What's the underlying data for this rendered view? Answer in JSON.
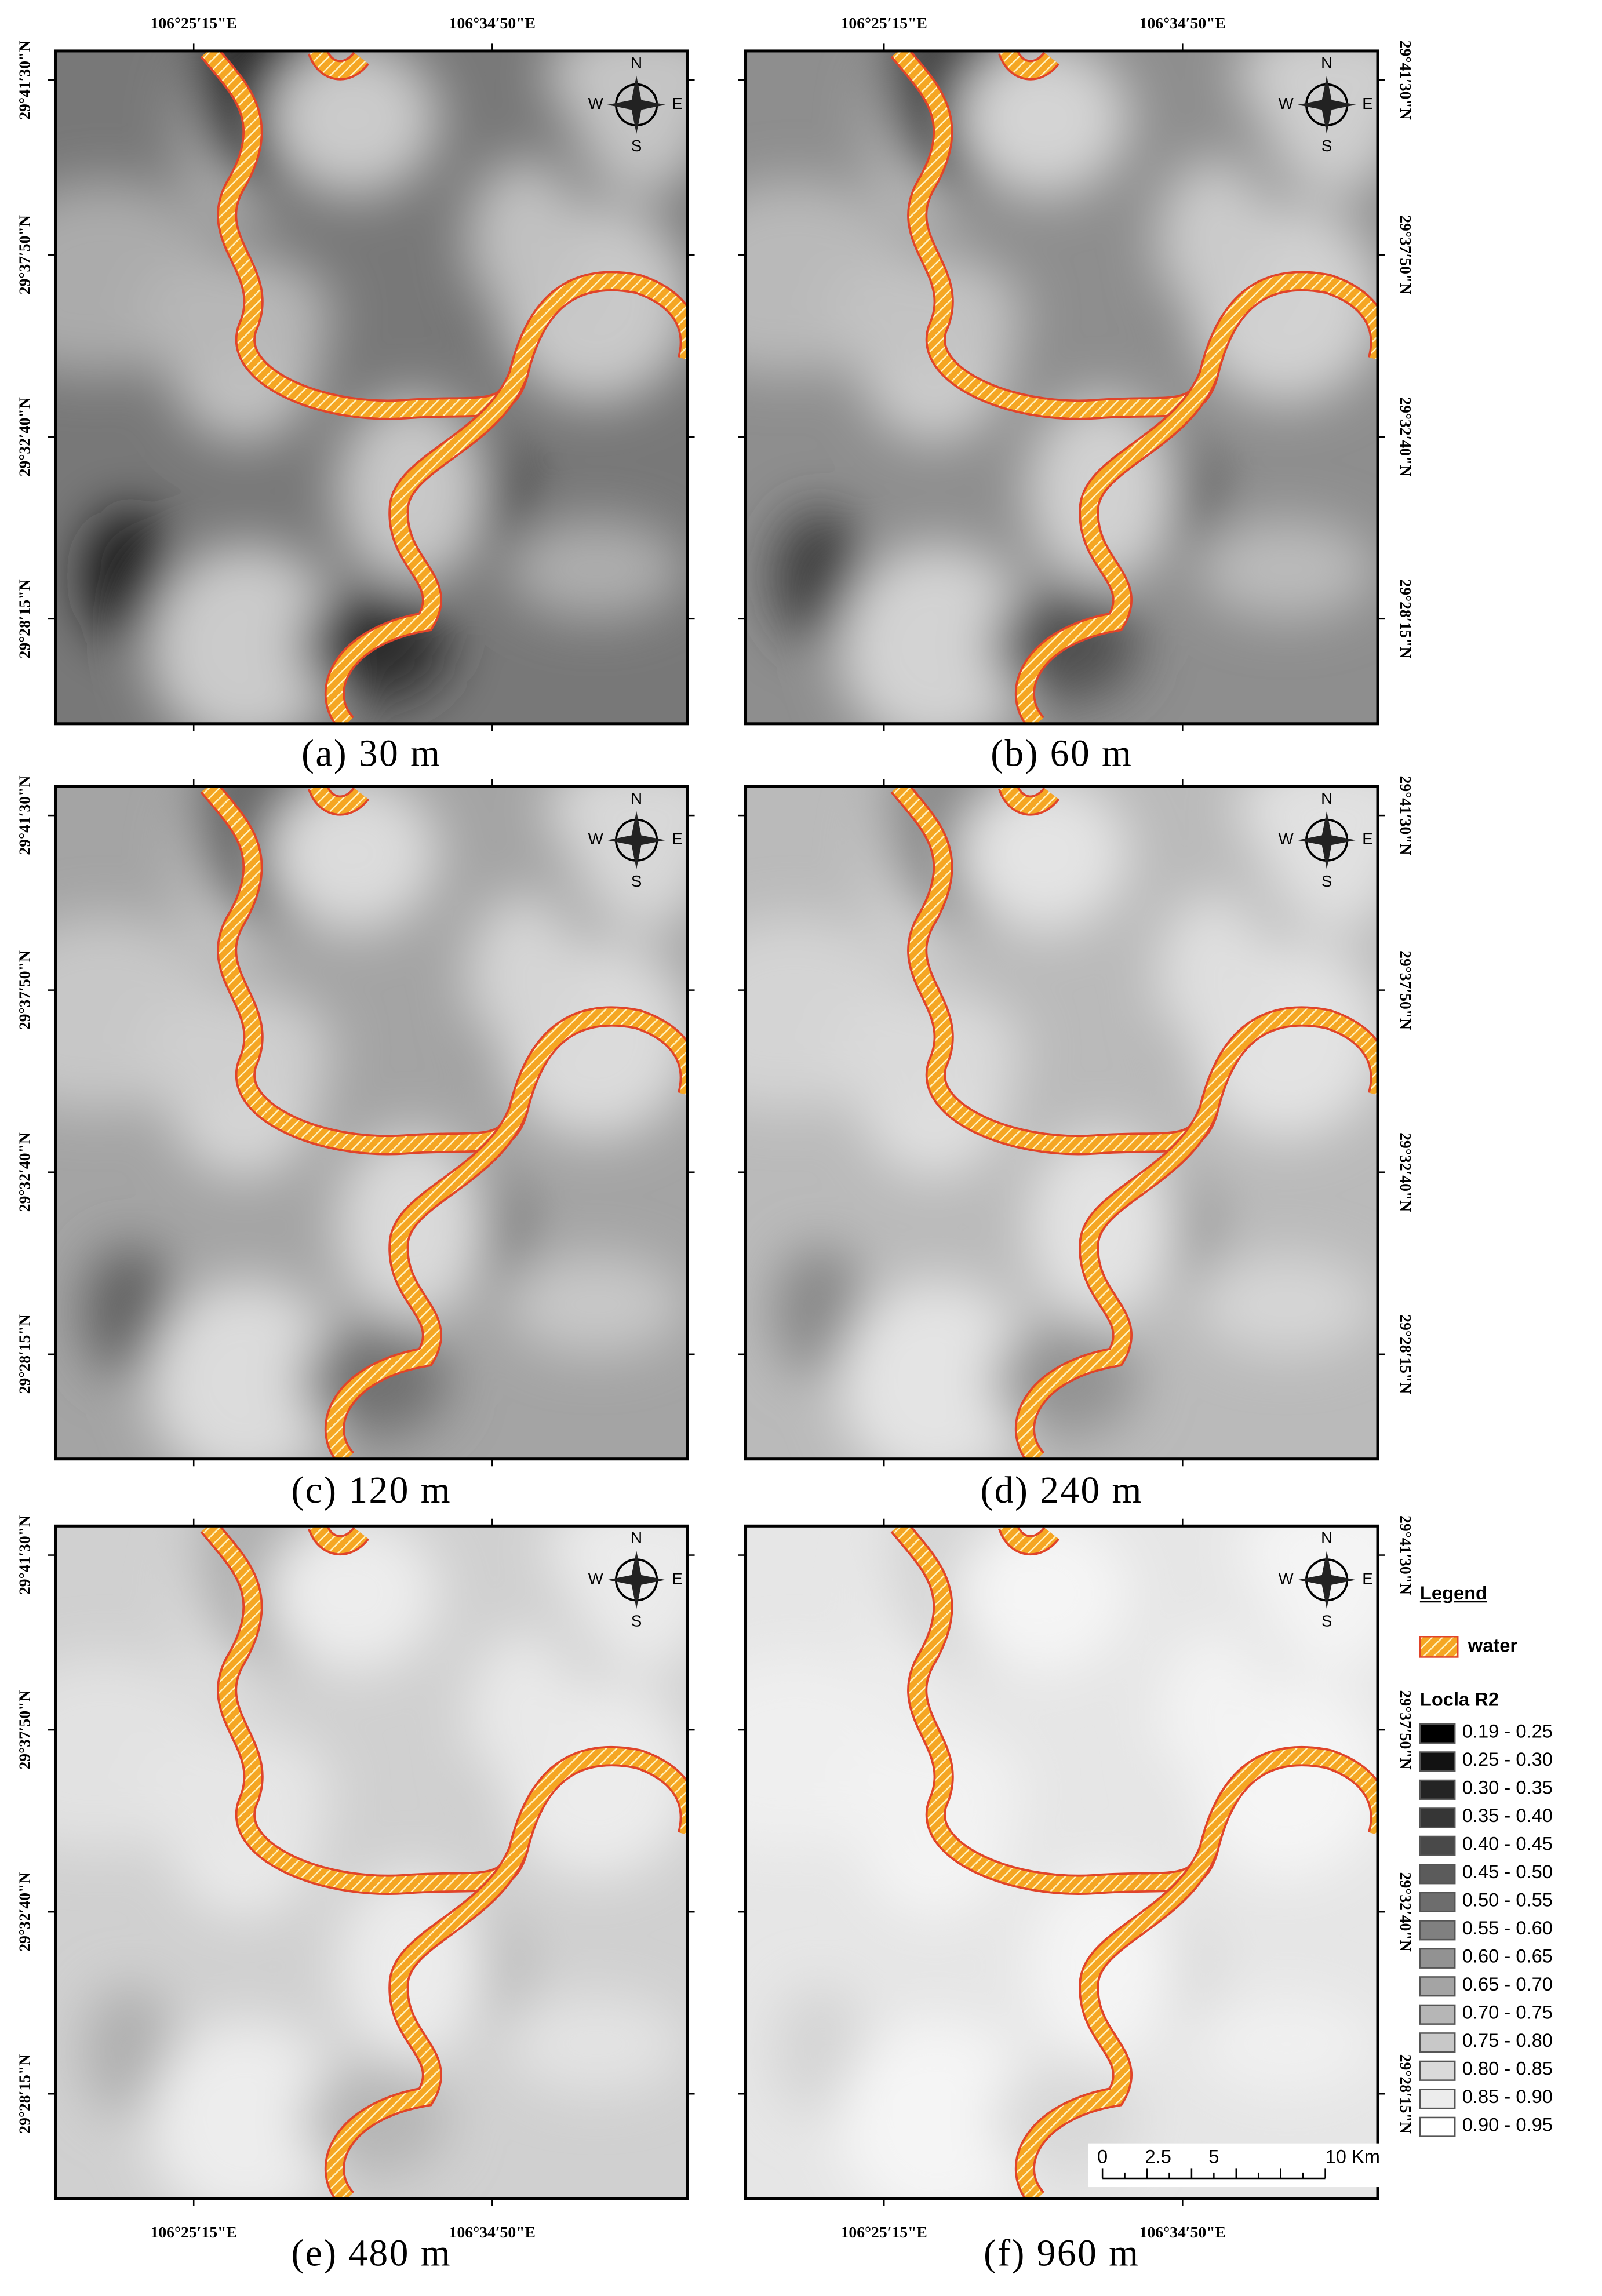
{
  "panels": [
    {
      "caption": "(a) 30 m"
    },
    {
      "caption": "(b) 60 m"
    },
    {
      "caption": "(c) 120 m"
    },
    {
      "caption": "(d) 240 m"
    },
    {
      "caption": "(e) 480 m"
    },
    {
      "caption": "(f) 960 m"
    }
  ],
  "lon_labels": [
    "106°25′15\"E",
    "106°34′50\"E"
  ],
  "lat_labels": [
    "29°41′30\"N",
    "29°37′50\"N",
    "29°32′40\"N",
    "29°28′15\"N"
  ],
  "compass": {
    "n": "N",
    "s": "S",
    "e": "E",
    "w": "W"
  },
  "legend": {
    "title": "Legend",
    "water": "water",
    "r2_title": "Locla R2",
    "classes": [
      {
        "label": "0.19 - 0.25",
        "color": "#000000"
      },
      {
        "label": "0.25 - 0.30",
        "color": "#121212"
      },
      {
        "label": "0.30 - 0.35",
        "color": "#242424"
      },
      {
        "label": "0.35 - 0.40",
        "color": "#363636"
      },
      {
        "label": "0.40 - 0.45",
        "color": "#494949"
      },
      {
        "label": "0.45 - 0.50",
        "color": "#5b5b5b"
      },
      {
        "label": "0.50 - 0.55",
        "color": "#6d6d6d"
      },
      {
        "label": "0.55 - 0.60",
        "color": "#808080"
      },
      {
        "label": "0.60 - 0.65",
        "color": "#929292"
      },
      {
        "label": "0.65 - 0.70",
        "color": "#a4a4a4"
      },
      {
        "label": "0.70 - 0.75",
        "color": "#b6b6b6"
      },
      {
        "label": "0.75 - 0.80",
        "color": "#c8c8c8"
      },
      {
        "label": "0.80 - 0.85",
        "color": "#dadada"
      },
      {
        "label": "0.85 - 0.90",
        "color": "#ececec"
      },
      {
        "label": "0.90 - 0.95",
        "color": "#ffffff"
      }
    ]
  },
  "scale_bar": {
    "labels": [
      "0",
      "2.5",
      "5",
      "10 Km"
    ]
  }
}
